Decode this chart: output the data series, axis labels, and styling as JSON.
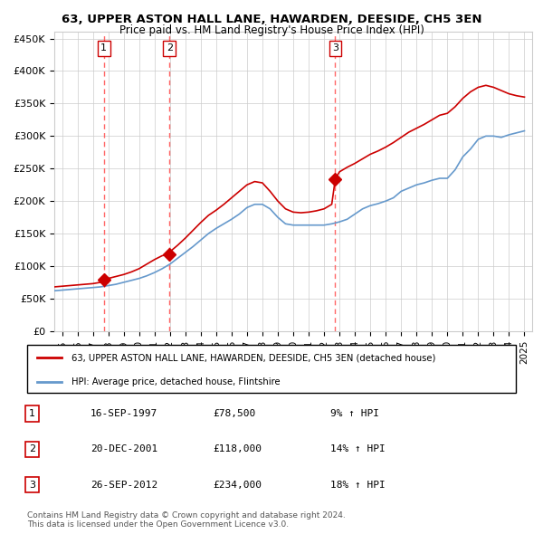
{
  "title": "63, UPPER ASTON HALL LANE, HAWARDEN, DEESIDE, CH5 3EN",
  "subtitle": "Price paid vs. HM Land Registry's House Price Index (HPI)",
  "ylim": [
    0,
    460000
  ],
  "yticks": [
    0,
    50000,
    100000,
    150000,
    200000,
    250000,
    300000,
    350000,
    400000,
    450000
  ],
  "ytick_labels": [
    "£0",
    "£50K",
    "£100K",
    "£150K",
    "£200K",
    "£250K",
    "£300K",
    "£350K",
    "£400K",
    "£450K"
  ],
  "xlim_start": 1994.5,
  "xlim_end": 2025.5,
  "xtick_years": [
    1995,
    1996,
    1997,
    1998,
    1999,
    2000,
    2001,
    2002,
    2003,
    2004,
    2005,
    2006,
    2007,
    2008,
    2009,
    2010,
    2011,
    2012,
    2013,
    2014,
    2015,
    2016,
    2017,
    2018,
    2019,
    2020,
    2021,
    2022,
    2023,
    2024,
    2025
  ],
  "sale_dates": [
    1997.71,
    2001.97,
    2012.73
  ],
  "sale_prices": [
    78500,
    118000,
    234000
  ],
  "sale_labels": [
    "1",
    "2",
    "3"
  ],
  "legend_red": "63, UPPER ASTON HALL LANE, HAWARDEN, DEESIDE, CH5 3EN (detached house)",
  "legend_blue": "HPI: Average price, detached house, Flintshire",
  "table_rows": [
    [
      "1",
      "16-SEP-1997",
      "£78,500",
      "9% ↑ HPI"
    ],
    [
      "2",
      "20-DEC-2001",
      "£118,000",
      "14% ↑ HPI"
    ],
    [
      "3",
      "26-SEP-2012",
      "£234,000",
      "18% ↑ HPI"
    ]
  ],
  "footer": "Contains HM Land Registry data © Crown copyright and database right 2024.\nThis data is licensed under the Open Government Licence v3.0.",
  "red_color": "#cc0000",
  "blue_color": "#6699cc",
  "dashed_color": "#ff6666",
  "background_color": "#ffffff",
  "grid_color": "#cccccc",
  "hpi_x": [
    1994.5,
    1995.0,
    1995.5,
    1996.0,
    1996.5,
    1997.0,
    1997.5,
    1998.0,
    1998.5,
    1999.0,
    1999.5,
    2000.0,
    2000.5,
    2001.0,
    2001.5,
    2002.0,
    2002.5,
    2003.0,
    2003.5,
    2004.0,
    2004.5,
    2005.0,
    2005.5,
    2006.0,
    2006.5,
    2007.0,
    2007.5,
    2008.0,
    2008.5,
    2009.0,
    2009.5,
    2010.0,
    2010.5,
    2011.0,
    2011.5,
    2012.0,
    2012.5,
    2013.0,
    2013.5,
    2014.0,
    2014.5,
    2015.0,
    2015.5,
    2016.0,
    2016.5,
    2017.0,
    2017.5,
    2018.0,
    2018.5,
    2019.0,
    2019.5,
    2020.0,
    2020.5,
    2021.0,
    2021.5,
    2022.0,
    2022.5,
    2023.0,
    2023.5,
    2024.0,
    2024.5,
    2025.0
  ],
  "hpi_y": [
    62000,
    63000,
    64000,
    65000,
    66000,
    67000,
    68000,
    70000,
    72000,
    75000,
    78000,
    81000,
    85000,
    90000,
    96000,
    103000,
    112000,
    121000,
    130000,
    140000,
    150000,
    158000,
    165000,
    172000,
    180000,
    190000,
    195000,
    195000,
    188000,
    175000,
    165000,
    163000,
    163000,
    163000,
    163000,
    163000,
    165000,
    168000,
    172000,
    180000,
    188000,
    193000,
    196000,
    200000,
    205000,
    215000,
    220000,
    225000,
    228000,
    232000,
    235000,
    235000,
    248000,
    268000,
    280000,
    295000,
    300000,
    300000,
    298000,
    302000,
    305000,
    308000
  ],
  "red_x": [
    1994.5,
    1995.0,
    1995.5,
    1996.0,
    1996.5,
    1997.0,
    1997.5,
    1997.71,
    1998.0,
    1998.5,
    1999.0,
    1999.5,
    2000.0,
    2000.5,
    2001.0,
    2001.5,
    2001.97,
    2002.0,
    2002.5,
    2003.0,
    2003.5,
    2004.0,
    2004.5,
    2005.0,
    2005.5,
    2006.0,
    2006.5,
    2007.0,
    2007.5,
    2008.0,
    2008.5,
    2009.0,
    2009.5,
    2010.0,
    2010.5,
    2011.0,
    2011.5,
    2012.0,
    2012.5,
    2012.73,
    2013.0,
    2013.5,
    2014.0,
    2014.5,
    2015.0,
    2015.5,
    2016.0,
    2016.5,
    2017.0,
    2017.5,
    2018.0,
    2018.5,
    2019.0,
    2019.5,
    2020.0,
    2020.5,
    2021.0,
    2021.5,
    2022.0,
    2022.5,
    2023.0,
    2023.5,
    2024.0,
    2024.5,
    2025.0
  ],
  "red_y": [
    68000,
    69000,
    70000,
    71000,
    72000,
    73000,
    75000,
    78500,
    81000,
    84000,
    87000,
    91000,
    96000,
    103000,
    110000,
    116000,
    118000,
    122000,
    132000,
    143000,
    155000,
    167000,
    178000,
    186000,
    195000,
    205000,
    215000,
    225000,
    230000,
    228000,
    215000,
    200000,
    188000,
    183000,
    182000,
    183000,
    185000,
    188000,
    195000,
    234000,
    245000,
    252000,
    258000,
    265000,
    272000,
    277000,
    283000,
    290000,
    298000,
    306000,
    312000,
    318000,
    325000,
    332000,
    335000,
    345000,
    358000,
    368000,
    375000,
    378000,
    375000,
    370000,
    365000,
    362000,
    360000
  ]
}
